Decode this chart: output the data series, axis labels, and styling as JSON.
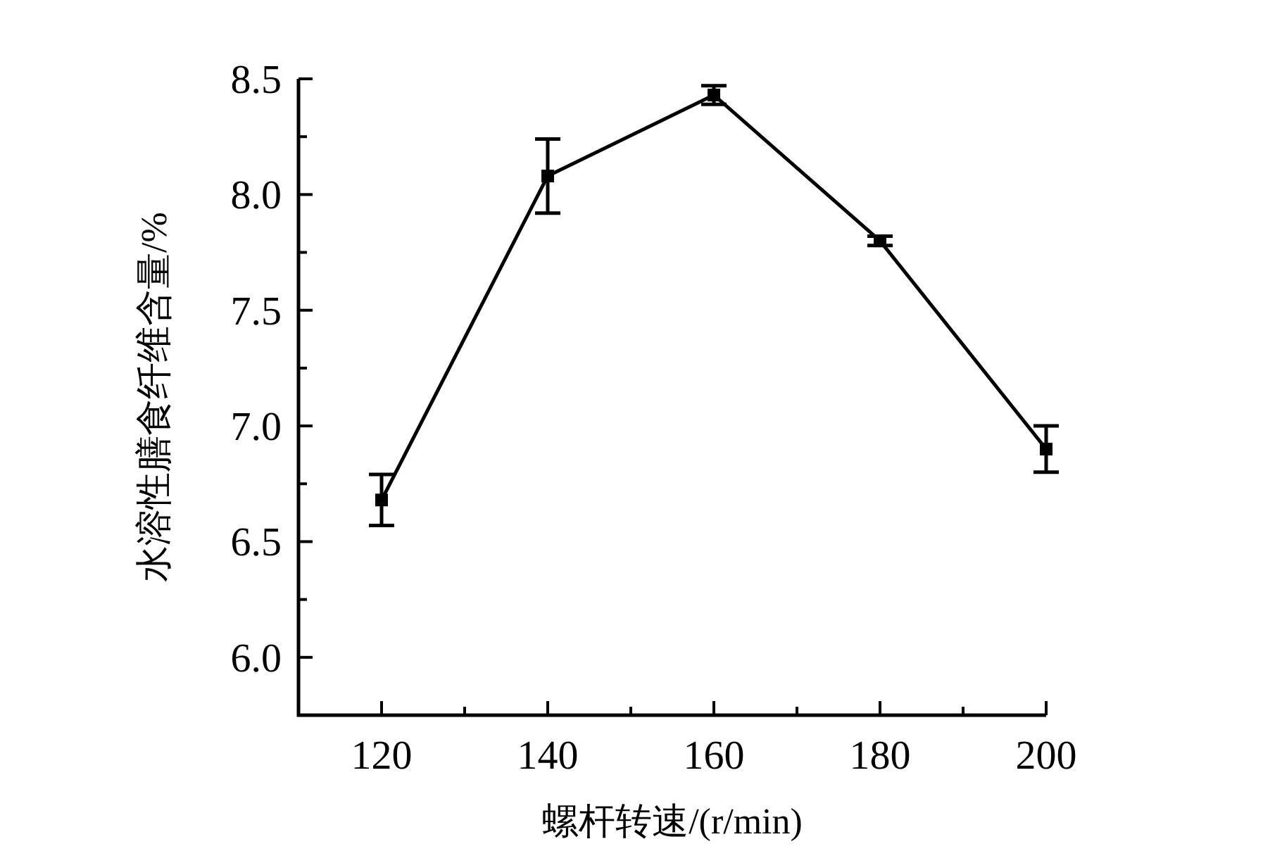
{
  "chart_data": {
    "type": "line",
    "xlabel": "螺杆转速/(r/min)",
    "ylabel": "水溶性膳食纤维含量/%",
    "x": [
      120,
      140,
      160,
      180,
      200
    ],
    "series": [
      {
        "color": "#000000",
        "values": [
          6.68,
          8.08,
          8.43,
          7.8,
          6.9
        ],
        "errors": [
          0.11,
          0.16,
          0.04,
          0.02,
          0.1
        ]
      }
    ],
    "xlim": [
      110,
      200
    ],
    "ylim": [
      5.75,
      8.5
    ],
    "xticks": [
      120,
      {
        "value": 130,
        "label": null
      },
      140,
      {
        "value": 150,
        "label": null
      },
      160,
      {
        "value": 170,
        "label": null
      },
      180,
      {
        "value": 190,
        "label": null
      },
      200
    ],
    "yticks": [
      {
        "value": 6.0,
        "label": "6.0"
      },
      {
        "value": 6.25,
        "label": null
      },
      6.5,
      {
        "value": 6.75,
        "label": null
      },
      {
        "value": 7.0,
        "label": "7.0"
      },
      {
        "value": 7.25,
        "label": null
      },
      7.5,
      {
        "value": 7.75,
        "label": null
      },
      {
        "value": 8.0,
        "label": "8.0"
      },
      {
        "value": 8.25,
        "label": null
      },
      8.5
    ],
    "marker": "square",
    "line_style": "solid"
  }
}
